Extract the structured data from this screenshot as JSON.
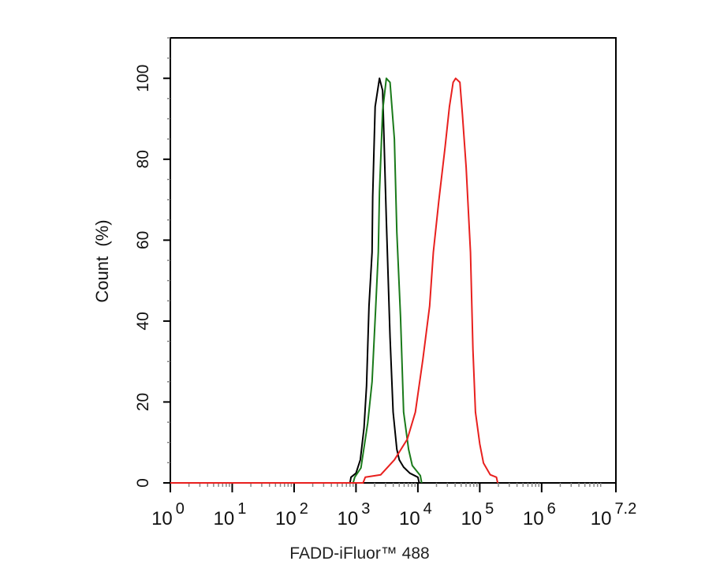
{
  "chart_data": {
    "type": "line",
    "title": "",
    "xlabel": "FADD-iFluor™ 488",
    "ylabel": "Count  (%)",
    "x_scale": "log",
    "xlim": [
      1,
      15848932
    ],
    "ylim": [
      0,
      110
    ],
    "x_ticks": [
      {
        "base": "10",
        "exp": "0",
        "value": 1
      },
      {
        "base": "10",
        "exp": "1",
        "value": 10
      },
      {
        "base": "10",
        "exp": "2",
        "value": 100
      },
      {
        "base": "10",
        "exp": "3",
        "value": 1000
      },
      {
        "base": "10",
        "exp": "4",
        "value": 10000
      },
      {
        "base": "10",
        "exp": "5",
        "value": 100000
      },
      {
        "base": "10",
        "exp": "6",
        "value": 1000000
      },
      {
        "base": "10",
        "exp": "7.2",
        "value": 15848932
      }
    ],
    "y_ticks": [
      "0",
      "20",
      "40",
      "60",
      "80",
      "100"
    ],
    "grid": false,
    "legend": "none",
    "series": [
      {
        "color": "#000000",
        "x": [
          800,
          832,
          1000,
          1175,
          1349,
          1479,
          1622,
          1820,
          1862,
          2042,
          2399,
          2692,
          3090,
          3548,
          3981,
          4571,
          5012,
          5888,
          7413,
          10000,
          10500
        ],
        "y": [
          0,
          1.4,
          2.4,
          5.7,
          13.6,
          24,
          43.7,
          57,
          70.7,
          93,
          100,
          97,
          65,
          36,
          17.5,
          8.3,
          5.7,
          3.9,
          2.4,
          1.4,
          0
        ]
      },
      {
        "color": "#1a7a1a",
        "x": [
          900,
          955,
          1202,
          1549,
          1820,
          2089,
          2291,
          2399,
          2692,
          3090,
          3548,
          4169,
          4571,
          5248,
          5888,
          7079,
          8128,
          10965,
          11500
        ],
        "y": [
          0,
          1.4,
          3.7,
          14.8,
          25,
          43.7,
          57,
          72,
          92,
          100,
          99,
          85,
          62,
          41,
          17.5,
          8.3,
          4.3,
          1.8,
          0
        ]
      },
      {
        "color": "#e8201e",
        "x": [
          1300,
          1413,
          2512,
          4169,
          6761,
          9120,
          12023,
          15488,
          17783,
          21878,
          27542,
          32359,
          37154,
          40738,
          47863,
          52481,
          60256,
          70795,
          77625,
          85114,
          100000,
          114815,
          147911,
          186209,
          195000
        ],
        "y": [
          0,
          1.4,
          2,
          5.7,
          10.8,
          17.5,
          30.5,
          43.7,
          57,
          70,
          83,
          93,
          99,
          100,
          99,
          91,
          78,
          57,
          33,
          17.5,
          9.6,
          4.9,
          2,
          1.4,
          0
        ]
      }
    ]
  }
}
